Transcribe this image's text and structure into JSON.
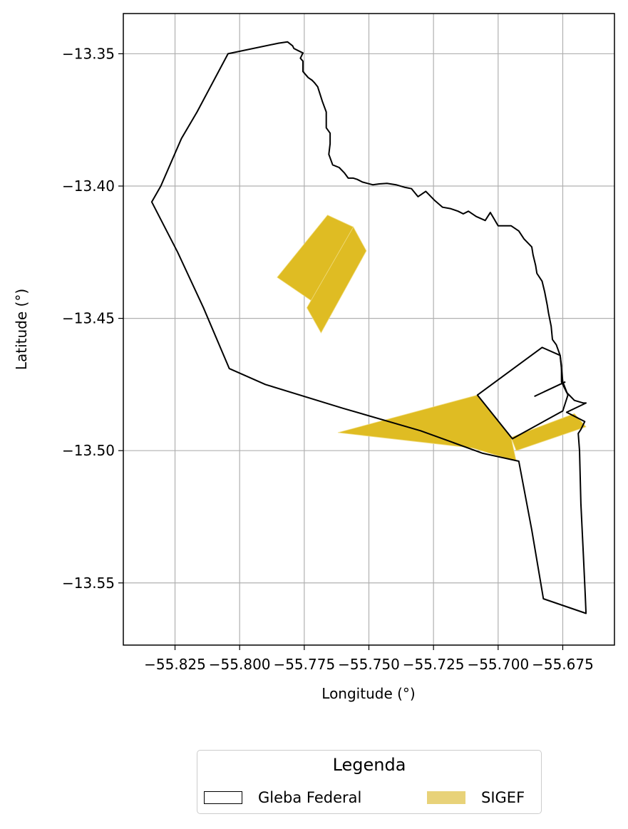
{
  "chart_data": {
    "type": "map",
    "title": "",
    "xlabel": "Longitude (°)",
    "ylabel": "Latitude (°)",
    "xlim": [
      -55.845,
      -55.655
    ],
    "ylim": [
      -13.5735,
      -13.3348
    ],
    "grid": true,
    "xticks": [
      -55.825,
      -55.8,
      -55.775,
      -55.75,
      -55.725,
      -55.7,
      -55.675
    ],
    "xtick_labels": [
      "−55.825",
      "−55.800",
      "−55.775",
      "−55.750",
      "−55.725",
      "−55.700",
      "−55.675"
    ],
    "yticks": [
      -13.35,
      -13.4,
      -13.45,
      -13.5,
      -13.55
    ],
    "ytick_labels": [
      "−13.35",
      "−13.40",
      "−13.45",
      "−13.50",
      "−13.55"
    ],
    "legend": {
      "title": "Legenda",
      "placement": "below",
      "entries": [
        {
          "label": "Gleba Federal",
          "style": "outline",
          "color": "#000000"
        },
        {
          "label": "SIGEF",
          "style": "fill",
          "color": "#e8d279"
        }
      ]
    },
    "layers": [
      {
        "name": "Gleba Federal",
        "stroke": "#000000",
        "fill": "none",
        "features": [
          {
            "kind": "polygon",
            "coords": [
              [
                -55.8045,
                -13.35
              ],
              [
                -55.785,
                -13.346
              ],
              [
                -55.7815,
                -13.3455
              ],
              [
                -55.7795,
                -13.347
              ],
              [
                -55.779,
                -13.348
              ],
              [
                -55.777,
                -13.349
              ],
              [
                -55.7755,
                -13.3497
              ],
              [
                -55.7765,
                -13.3517
              ],
              [
                -55.7755,
                -13.3528
              ],
              [
                -55.7755,
                -13.3567
              ],
              [
                -55.7735,
                -13.359
              ],
              [
                -55.772,
                -13.36
              ],
              [
                -55.771,
                -13.361
              ],
              [
                -55.7698,
                -13.3625
              ],
              [
                -55.768,
                -13.368
              ],
              [
                -55.7665,
                -13.372
              ],
              [
                -55.7665,
                -13.378
              ],
              [
                -55.765,
                -13.38
              ],
              [
                -55.765,
                -13.384
              ],
              [
                -55.7655,
                -13.388
              ],
              [
                -55.764,
                -13.392
              ],
              [
                -55.7615,
                -13.393
              ],
              [
                -55.7595,
                -13.395
              ],
              [
                -55.758,
                -13.397
              ],
              [
                -55.756,
                -13.397
              ],
              [
                -55.7545,
                -13.3975
              ],
              [
                -55.7525,
                -13.3985
              ],
              [
                -55.7505,
                -13.399
              ],
              [
                -55.7485,
                -13.3995
              ],
              [
                -55.746,
                -13.3992
              ],
              [
                -55.743,
                -13.399
              ],
              [
                -55.7395,
                -13.3995
              ],
              [
                -55.736,
                -13.4005
              ],
              [
                -55.7335,
                -13.401
              ],
              [
                -55.731,
                -13.404
              ],
              [
                -55.728,
                -13.402
              ],
              [
                -55.7245,
                -13.4055
              ],
              [
                -55.7215,
                -13.408
              ],
              [
                -55.7185,
                -13.4085
              ],
              [
                -55.7155,
                -13.4095
              ],
              [
                -55.7135,
                -13.4105
              ],
              [
                -55.7115,
                -13.4095
              ],
              [
                -55.7085,
                -13.4115
              ],
              [
                -55.705,
                -13.413
              ],
              [
                -55.703,
                -13.41
              ],
              [
                -55.7,
                -13.415
              ],
              [
                -55.695,
                -13.415
              ],
              [
                -55.692,
                -13.417
              ],
              [
                -55.69,
                -13.42
              ],
              [
                -55.687,
                -13.423
              ],
              [
                -55.6865,
                -13.426
              ],
              [
                -55.6855,
                -13.43
              ],
              [
                -55.685,
                -13.433
              ],
              [
                -55.683,
                -13.436
              ],
              [
                -55.682,
                -13.44
              ],
              [
                -55.681,
                -13.445
              ],
              [
                -55.6805,
                -13.448
              ],
              [
                -55.6795,
                -13.453
              ],
              [
                -55.679,
                -13.458
              ],
              [
                -55.6775,
                -13.46
              ],
              [
                -55.676,
                -13.464
              ],
              [
                -55.6755,
                -13.468
              ],
              [
                -55.6755,
                -13.474
              ],
              [
                -55.6735,
                -13.478
              ],
              [
                -55.6705,
                -13.481
              ],
              [
                -55.667,
                -13.482
              ],
              [
                -55.666,
                -13.482
              ],
              [
                -55.6735,
                -13.4855
              ],
              [
                -55.6665,
                -13.489
              ],
              [
                -55.668,
                -13.492
              ],
              [
                -55.669,
                -13.4935
              ],
              [
                -55.6685,
                -13.5
              ],
              [
                -55.668,
                -13.52
              ],
              [
                -55.667,
                -13.54
              ],
              [
                -55.6663,
                -13.5545
              ],
              [
                -55.666,
                -13.5615
              ],
              [
                -55.6825,
                -13.556
              ],
              [
                -55.687,
                -13.53
              ],
              [
                -55.692,
                -13.504
              ],
              [
                -55.706,
                -13.501
              ],
              [
                -55.73,
                -13.4925
              ],
              [
                -55.76,
                -13.484
              ],
              [
                -55.79,
                -13.475
              ],
              [
                -55.804,
                -13.469
              ],
              [
                -55.814,
                -13.446
              ],
              [
                -55.824,
                -13.425
              ],
              [
                -55.834,
                -13.406
              ],
              [
                -55.8305,
                -13.4
              ],
              [
                -55.8225,
                -13.382
              ],
              [
                -55.8165,
                -13.372
              ],
              [
                -55.8045,
                -13.35
              ]
            ]
          },
          {
            "kind": "polygon",
            "coords": [
              [
                -55.708,
                -13.479
              ],
              [
                -55.683,
                -13.461
              ],
              [
                -55.676,
                -13.464
              ],
              [
                -55.675,
                -13.474
              ],
              [
                -55.673,
                -13.479
              ],
              [
                -55.675,
                -13.485
              ],
              [
                -55.6945,
                -13.4955
              ],
              [
                -55.708,
                -13.479
              ]
            ]
          },
          {
            "kind": "line",
            "coords": [
              [
                -55.686,
                -13.4795
              ],
              [
                -55.674,
                -13.474
              ]
            ]
          }
        ]
      },
      {
        "name": "SIGEF",
        "fill": "#dfbc23",
        "stroke": "#f0dc80",
        "features": [
          {
            "kind": "polygon",
            "coords": [
              [
                -55.766,
                -13.411
              ],
              [
                -55.756,
                -13.4155
              ],
              [
                -55.769,
                -13.4455
              ],
              [
                -55.7855,
                -13.4345
              ]
            ]
          },
          {
            "kind": "polygon",
            "coords": [
              [
                -55.756,
                -13.4155
              ],
              [
                -55.751,
                -13.4245
              ],
              [
                -55.7685,
                -13.4555
              ],
              [
                -55.774,
                -13.446
              ]
            ]
          },
          {
            "kind": "polygon",
            "coords": [
              [
                -55.762,
                -13.4932
              ],
              [
                -55.708,
                -13.479
              ],
              [
                -55.695,
                -13.495
              ],
              [
                -55.693,
                -13.504
              ],
              [
                -55.71,
                -13.499
              ]
            ]
          },
          {
            "kind": "polygon",
            "coords": [
              [
                -55.695,
                -13.495
              ],
              [
                -55.6705,
                -13.486
              ],
              [
                -55.666,
                -13.491
              ],
              [
                -55.693,
                -13.5
              ]
            ]
          }
        ]
      }
    ]
  }
}
